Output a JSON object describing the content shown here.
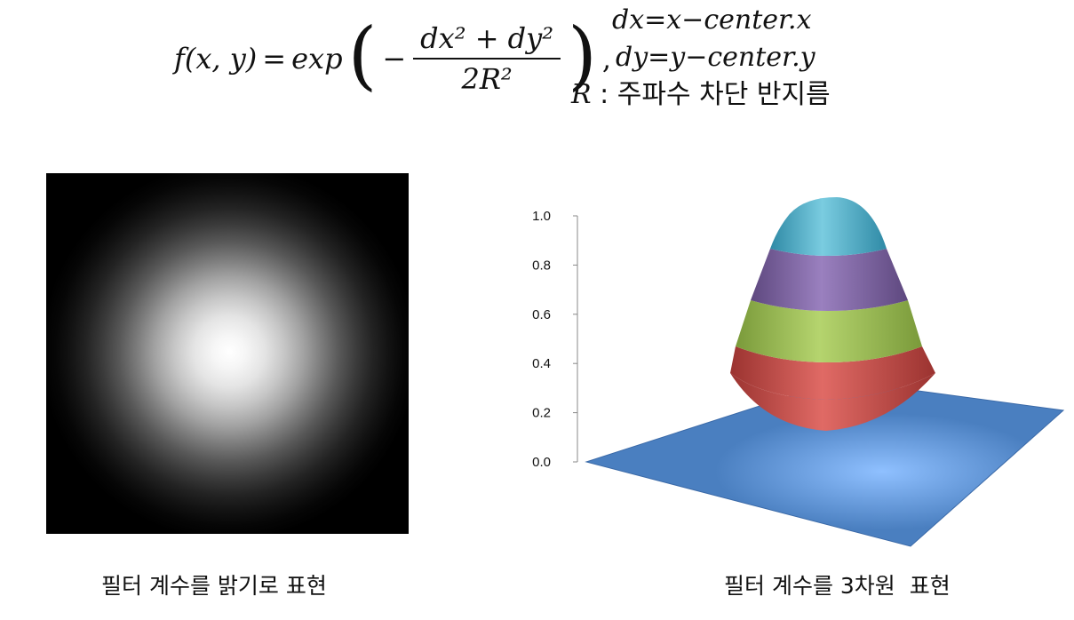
{
  "formula": {
    "lhs": "f(x, y)",
    "equals": "=",
    "func": "exp",
    "numerator": "dx² + dy²",
    "denominator": "2R²",
    "comma": ",",
    "def_dx": "dx=x−center.x",
    "def_dy": "dy=y−center.y",
    "def_r_var": "R",
    "def_r_text": " : 주파수 차단 반지름"
  },
  "captions": {
    "left": "필터 계수를 밝기로 표현",
    "right": "필터 계수를 3차원  표현"
  },
  "chart_data": {
    "type": "surface",
    "z_ticks": [
      "0.0",
      "0.2",
      "0.4",
      "0.6",
      "0.8",
      "1.0"
    ],
    "z_range": [
      0,
      1
    ],
    "bands": [
      {
        "range": [
          0.0,
          0.2
        ],
        "color": "#4f81bd"
      },
      {
        "range": [
          0.2,
          0.4
        ],
        "color": "#c0504d"
      },
      {
        "range": [
          0.4,
          0.6
        ],
        "color": "#9bbb59"
      },
      {
        "range": [
          0.6,
          0.8
        ],
        "color": "#8064a2"
      },
      {
        "range": [
          0.8,
          1.0
        ],
        "color": "#4bacc6"
      }
    ]
  }
}
